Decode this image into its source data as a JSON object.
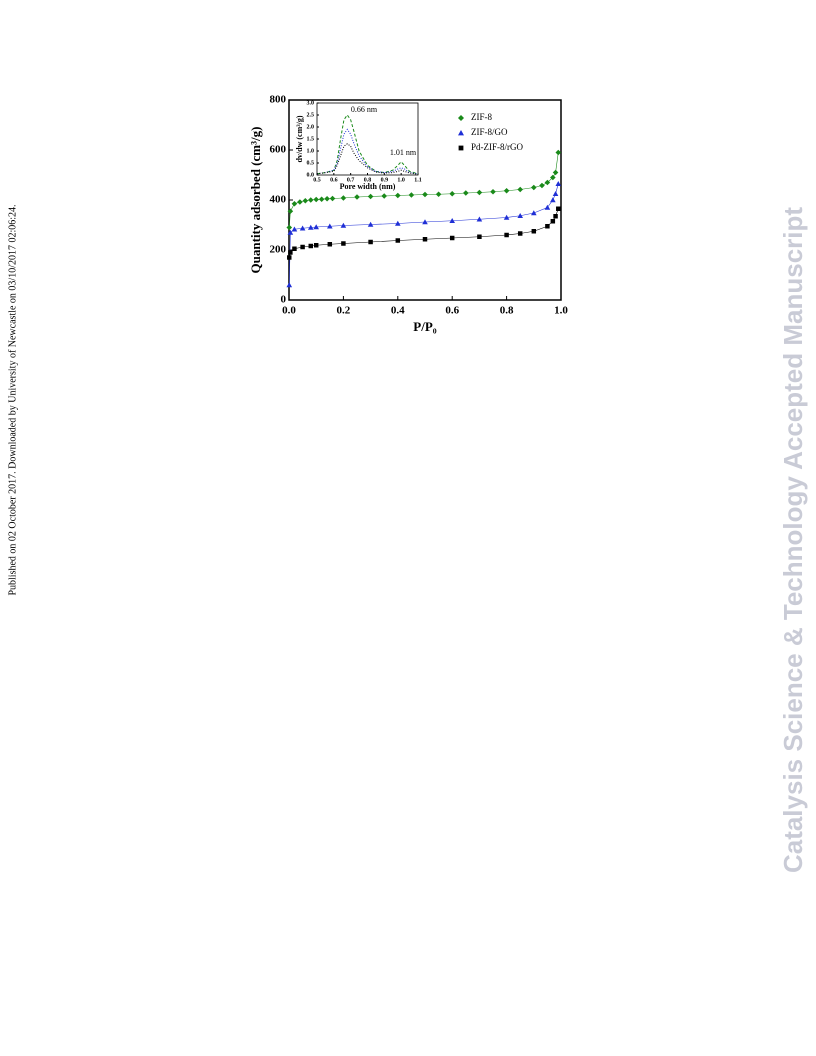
{
  "side_note": "Published on 02 October 2017. Downloaded by University of Newcastle on 03/10/2017 02:06:24.",
  "watermark": "Catalysis Science & Technology Accepted Manuscript",
  "chart_data": [
    {
      "type": "line",
      "xlabel": "P/P₀",
      "ylabel": "Quantity adsorbed (cm³/g)",
      "xlim": [
        0,
        1.0
      ],
      "ylim": [
        0,
        800
      ],
      "xticks": [
        {
          "value": 0,
          "label": "0.0"
        },
        0.2,
        0.4,
        0.6,
        0.8,
        {
          "value": 1,
          "label": "1.0"
        }
      ],
      "yticks": [
        0,
        200,
        400,
        600,
        800
      ],
      "legend": "upper right",
      "series": [
        {
          "name": "ZIF-8",
          "color": "#1a8a1a",
          "marker": "diamond",
          "x": [
            0.001,
            0.005,
            0.02,
            0.04,
            0.06,
            0.08,
            0.1,
            0.12,
            0.14,
            0.16,
            0.2,
            0.25,
            0.3,
            0.35,
            0.4,
            0.45,
            0.5,
            0.55,
            0.6,
            0.65,
            0.7,
            0.75,
            0.8,
            0.85,
            0.9,
            0.93,
            0.95,
            0.97,
            0.98,
            0.99
          ],
          "values": [
            290,
            355,
            385,
            392,
            397,
            400,
            402,
            403,
            405,
            406,
            408,
            412,
            414,
            416,
            418,
            420,
            422,
            423,
            425,
            428,
            430,
            433,
            437,
            442,
            450,
            458,
            470,
            490,
            510,
            590
          ]
        },
        {
          "name": "ZIF-8/GO",
          "color": "#1f2fd6",
          "marker": "triangle",
          "x": [
            0.001,
            0.005,
            0.02,
            0.05,
            0.08,
            0.1,
            0.15,
            0.2,
            0.3,
            0.4,
            0.5,
            0.6,
            0.7,
            0.8,
            0.85,
            0.9,
            0.95,
            0.97,
            0.98,
            0.99
          ],
          "values": [
            60,
            270,
            283,
            287,
            290,
            292,
            295,
            298,
            302,
            306,
            312,
            317,
            323,
            330,
            337,
            348,
            370,
            400,
            425,
            465
          ]
        },
        {
          "name": "Pd-ZIF-8/rGO",
          "color": "#000000",
          "marker": "square",
          "x": [
            0.001,
            0.005,
            0.02,
            0.05,
            0.08,
            0.1,
            0.15,
            0.2,
            0.3,
            0.4,
            0.5,
            0.6,
            0.7,
            0.8,
            0.85,
            0.9,
            0.95,
            0.97,
            0.98,
            0.99
          ],
          "values": [
            170,
            190,
            205,
            212,
            216,
            219,
            223,
            226,
            232,
            238,
            243,
            248,
            253,
            260,
            266,
            275,
            295,
            315,
            335,
            365
          ]
        }
      ]
    },
    {
      "type": "line",
      "xlabel": "Pore width (nm)",
      "ylabel": "dv/dw (cm³/g)",
      "xlim": [
        0.5,
        1.1
      ],
      "ylim": [
        0,
        3
      ],
      "xticks": [
        0.5,
        0.6,
        0.7,
        0.8,
        0.9,
        {
          "value": 1,
          "label": "1.0"
        },
        1.1
      ],
      "yticks": [
        {
          "value": 0,
          "label": "0.0"
        },
        0.5,
        {
          "value": 1,
          "label": "1.0"
        },
        1.5,
        {
          "value": 2,
          "label": "2.0"
        },
        2.5,
        {
          "value": 3,
          "label": "3.0"
        }
      ],
      "annotations": [
        "0.66 nm",
        "1.01 nm"
      ],
      "x": [
        0.5,
        0.55,
        0.6,
        0.62,
        0.64,
        0.66,
        0.68,
        0.7,
        0.72,
        0.75,
        0.8,
        0.85,
        0.9,
        0.95,
        0.98,
        1.0,
        1.02,
        1.05,
        1.1
      ],
      "series": [
        {
          "color": "#1a8a1a",
          "dash": "dashed",
          "values": [
            0.05,
            0.1,
            0.2,
            0.6,
            1.5,
            2.3,
            2.5,
            2.3,
            1.8,
            1.0,
            0.4,
            0.15,
            0.1,
            0.2,
            0.4,
            0.55,
            0.4,
            0.15,
            0.05
          ]
        },
        {
          "color": "#1f2fd6",
          "dash": "dotted",
          "values": [
            0.05,
            0.1,
            0.2,
            0.5,
            1.1,
            1.7,
            1.9,
            1.7,
            1.3,
            0.8,
            0.35,
            0.15,
            0.1,
            0.15,
            0.25,
            0.3,
            0.25,
            0.1,
            0.05
          ]
        },
        {
          "color": "#000000",
          "dash": "dotted",
          "values": [
            0.05,
            0.1,
            0.15,
            0.4,
            0.8,
            1.2,
            1.3,
            1.2,
            0.9,
            0.6,
            0.3,
            0.12,
            0.08,
            0.1,
            0.15,
            0.2,
            0.15,
            0.08,
            0.03
          ]
        }
      ]
    }
  ]
}
